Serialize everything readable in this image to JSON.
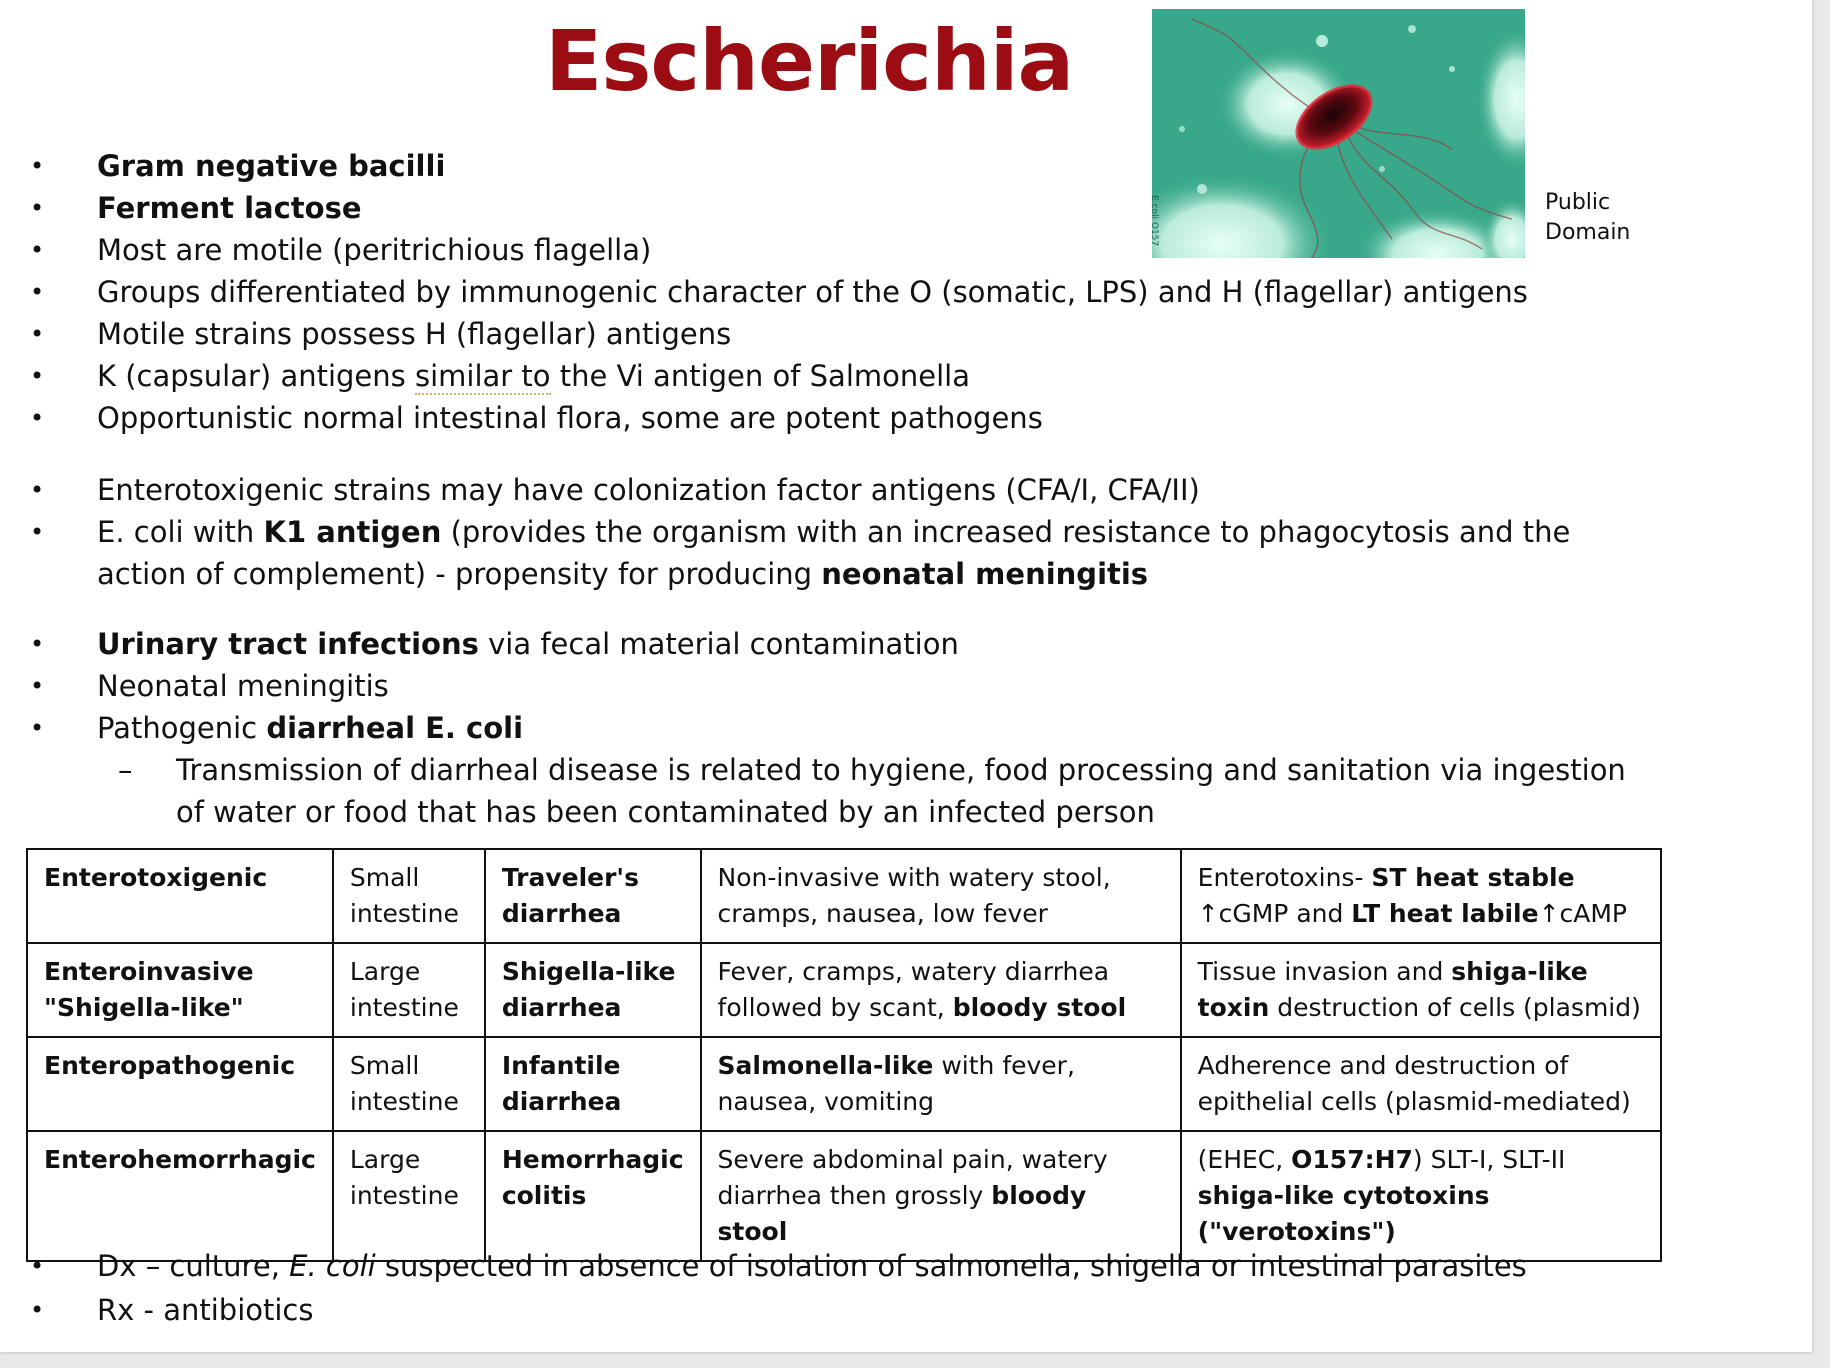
{
  "slide": {
    "title": "Escherichia",
    "photo_credit": [
      "Public",
      "Domain"
    ]
  },
  "bullets_group1": [
    {
      "parts": [
        {
          "t": "Gram negative bacilli",
          "b": true
        }
      ]
    },
    {
      "parts": [
        {
          "t": "Ferment lactose",
          "b": true
        }
      ]
    },
    {
      "parts": [
        {
          "t": "Most are motile (peritrichious flagella)"
        }
      ]
    },
    {
      "parts": [
        {
          "t": "Groups differentiated by immunogenic character of the O (somatic, LPS) and H (flagellar) antigens"
        }
      ]
    },
    {
      "parts": [
        {
          "t": "Motile strains possess H (flagellar) antigens"
        }
      ]
    },
    {
      "parts": [
        {
          "t": "K (capsular) antigens "
        },
        {
          "t": "similar to",
          "u": true
        },
        {
          "t": " the Vi antigen of Salmonella"
        }
      ]
    },
    {
      "parts": [
        {
          "t": "Opportunistic normal intestinal flora, some are potent pathogens"
        }
      ]
    }
  ],
  "bullets_group2": [
    {
      "parts": [
        {
          "t": "Enterotoxigenic strains may have colonization factor antigens (CFA/I, CFA/II)"
        }
      ]
    },
    {
      "parts": [
        {
          "t": "E. coli with "
        },
        {
          "t": "K1 antigen",
          "b": true
        },
        {
          "t": " (provides the organism with an increased resistance to phagocytosis and the action of complement) - propensity for producing "
        },
        {
          "t": "neonatal meningitis",
          "b": true
        }
      ]
    }
  ],
  "bullets_group3": [
    {
      "parts": [
        {
          "t": "Urinary tract infections",
          "b": true
        },
        {
          "t": " via fecal material contamination"
        }
      ]
    },
    {
      "parts": [
        {
          "t": "Neonatal meningitis"
        }
      ]
    },
    {
      "parts": [
        {
          "t": "Pathogenic "
        },
        {
          "t": "diarrheal E. coli",
          "b": true
        }
      ]
    }
  ],
  "sub_bullet": {
    "marker": "–",
    "text": "Transmission of diarrheal disease is related to hygiene, food processing and sanitation via ingestion of water or food that has been contaminated by an infected person"
  },
  "table": {
    "rows": [
      [
        [
          {
            "t": "Enterotoxigenic",
            "b": true
          }
        ],
        [
          {
            "t": "Small intestine"
          }
        ],
        [
          {
            "t": "Traveler's diarrhea",
            "b": true
          }
        ],
        [
          {
            "t": "Non-invasive with watery stool, cramps, nausea, low fever"
          }
        ],
        [
          {
            "t": "Enterotoxins- "
          },
          {
            "t": "ST heat stable",
            "b": true
          },
          {
            "t": "  ↑cGMP and "
          },
          {
            "t": "LT heat labile",
            "b": true
          },
          {
            "t": "↑cAMP"
          }
        ]
      ],
      [
        [
          {
            "t": "Enteroinvasive \"Shigella-like\"",
            "b": true
          }
        ],
        [
          {
            "t": "Large intestine"
          }
        ],
        [
          {
            "t": "Shigella-like diarrhea",
            "b": true
          }
        ],
        [
          {
            "t": "Fever, cramps, watery diarrhea followed by scant, "
          },
          {
            "t": "bloody stool",
            "b": true
          }
        ],
        [
          {
            "t": "Tissue invasion and "
          },
          {
            "t": "shiga-like toxin",
            "b": true
          },
          {
            "t": " destruction of cells (plasmid)"
          }
        ]
      ],
      [
        [
          {
            "t": "Enteropathogenic",
            "b": true
          }
        ],
        [
          {
            "t": "Small intestine"
          }
        ],
        [
          {
            "t": "Infantile diarrhea",
            "b": true
          }
        ],
        [
          {
            "t": "Salmonella-like",
            "b": true
          },
          {
            "t": " with fever, nausea, vomiting"
          }
        ],
        [
          {
            "t": "Adherence and destruction of epithelial cells (plasmid-mediated)"
          }
        ]
      ],
      [
        [
          {
            "t": "Enterohemorrhagic",
            "b": true
          }
        ],
        [
          {
            "t": "Large intestine"
          }
        ],
        [
          {
            "t": "Hemorrhagic colitis",
            "b": true
          }
        ],
        [
          {
            "t": "Severe abdominal pain, watery diarrhea then grossly "
          },
          {
            "t": "bloody stool",
            "b": true
          }
        ],
        [
          {
            "t": "(EHEC, "
          },
          {
            "t": "O157:H7",
            "b": true
          },
          {
            "t": ") SLT-I, SLT-II "
          },
          {
            "t": "shiga-like cytotoxins (\"verotoxins\")",
            "b": true
          }
        ]
      ]
    ]
  },
  "bullets_group4": [
    {
      "parts": [
        {
          "t": "Dx – culture, "
        },
        {
          "t": "E. coli",
          "i": true
        },
        {
          "t": " suspected in absence of isolation of salmonella, shigella or intestinal parasites"
        }
      ]
    },
    {
      "parts": [
        {
          "t": "Rx - antibiotics"
        }
      ]
    }
  ],
  "colors": {
    "title": "#9b0d12",
    "photo_bg": "#3fae8f",
    "bacterium": "#c01424"
  },
  "icons": {
    "bullet": "•"
  }
}
